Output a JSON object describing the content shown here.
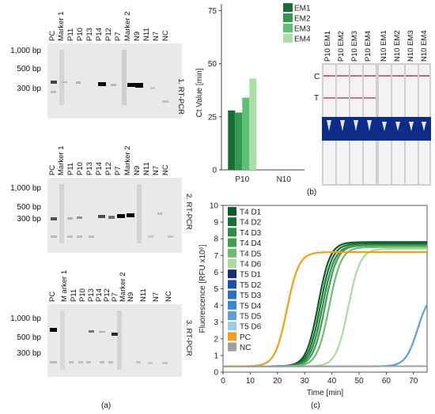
{
  "gels": [
    {
      "lanes": [
        "PC",
        "Marker 1",
        "P11",
        "P10",
        "P13",
        "P14",
        "P12",
        "P7",
        "Marker 2",
        "N9",
        "N11",
        "N7",
        "NC"
      ],
      "bp_labels": [
        "1,000 bp",
        "500 bp",
        "300 bp"
      ],
      "side_label": "1. RT-PCR"
    },
    {
      "lanes": [
        "PC",
        "Marker 1",
        "P11",
        "P10",
        "P13",
        "P14",
        "P12",
        "P7",
        "Marker 2",
        "N9",
        "N11",
        "N7",
        "NC"
      ],
      "bp_labels": [
        "1,000 bp",
        "500 bp",
        "300 bp"
      ],
      "side_label": "2. RT-PCR"
    },
    {
      "lanes": [
        "PC",
        "M arker 1",
        "P11",
        "P10",
        "P13",
        "P14",
        "P12",
        "P7",
        "Marker 2",
        "N9",
        "N11",
        "N7",
        "NC"
      ],
      "bp_labels": [
        "1,000 bp",
        "500 bp",
        "300 bp"
      ],
      "side_label": "3. RT-PCR"
    }
  ],
  "panel_labels": {
    "a": "(a)",
    "b": "(b)",
    "c": "(c)"
  },
  "strip": {
    "lanes": [
      "P10 EM1",
      "P10 EM2",
      "P10 EM3",
      "P10 EM4",
      "N10 EM1",
      "N10 EM2",
      "N10 EM3",
      "N10 EM4"
    ],
    "c_label": "C",
    "t_label": "T"
  },
  "chart_data": [
    {
      "type": "bar",
      "ylabel": "Ct Value [min]",
      "categories": [
        "P10",
        "N10"
      ],
      "ylim": [
        0,
        80
      ],
      "yticks": [
        0,
        25,
        50,
        75
      ],
      "series": [
        {
          "name": "EM1",
          "color": "#1e6b36",
          "values": [
            28,
            0
          ]
        },
        {
          "name": "EM2",
          "color": "#2f9a4e",
          "values": [
            27,
            0
          ]
        },
        {
          "name": "EM3",
          "color": "#5cbf74",
          "values": [
            34,
            0
          ]
        },
        {
          "name": "EM4",
          "color": "#a9dfa6",
          "values": [
            43,
            0
          ]
        }
      ],
      "legend": "top-right"
    },
    {
      "type": "line",
      "xlabel": "Time [min]",
      "ylabel": "Fluorescence [RFU x10⁶]",
      "xlim": [
        0,
        75
      ],
      "ylim": [
        0,
        10
      ],
      "xticks": [
        0,
        10,
        20,
        30,
        40,
        50,
        60,
        70
      ],
      "yticks": [
        0,
        1,
        2,
        3,
        4,
        5,
        6,
        7,
        8,
        9,
        10
      ],
      "baseline": 0.35,
      "series": [
        {
          "name": "T4 D1",
          "color": "#0f5a2a",
          "midpoint": 35.0,
          "plateau": 7.8
        },
        {
          "name": "T4 D2",
          "color": "#1b6e35",
          "midpoint": 35.8,
          "plateau": 7.7
        },
        {
          "name": "T4 D3",
          "color": "#2e8a44",
          "midpoint": 36.6,
          "plateau": 7.6
        },
        {
          "name": "T4 D4",
          "color": "#3f9f52",
          "midpoint": 37.5,
          "plateau": 7.6
        },
        {
          "name": "T4 D5",
          "color": "#6cbf6a",
          "midpoint": 39.0,
          "plateau": 7.5
        },
        {
          "name": "T4 D6",
          "color": "#a8dc9c",
          "midpoint": 46.0,
          "plateau": 7.4
        },
        {
          "name": "T5 D1",
          "color": "#16306e",
          "flat": true
        },
        {
          "name": "T5 D2",
          "color": "#1f4f9e",
          "flat": true
        },
        {
          "name": "T5 D3",
          "color": "#2d6cc0",
          "flat": true
        },
        {
          "name": "T5 D4",
          "color": "#3b86d0",
          "flat": true
        },
        {
          "name": "T5 D5",
          "color": "#5aa3d8",
          "midpoint": 71.5,
          "plateau": 4.8
        },
        {
          "name": "T5 D6",
          "color": "#9ccbe8",
          "flat": true
        },
        {
          "name": "PC",
          "color": "#f0a018",
          "midpoint": 23.5,
          "plateau": 7.2
        },
        {
          "name": "NC",
          "color": "#a0a0a0",
          "flat": true
        }
      ]
    }
  ]
}
